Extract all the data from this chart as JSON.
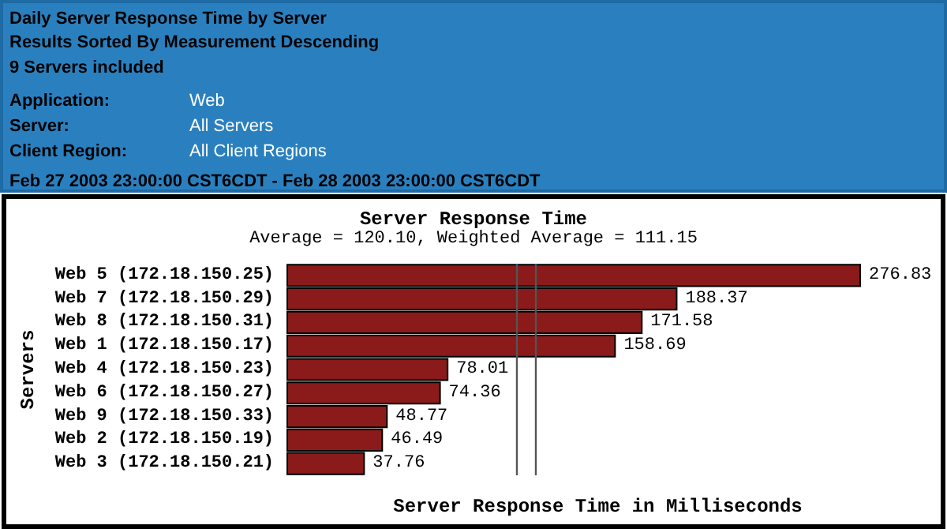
{
  "chart_data": {
    "type": "bar",
    "orientation": "horizontal",
    "title": "Server Response Time",
    "subtitle": "Average = 120.10, Weighted Average = 111.15",
    "xlabel": "Server Response Time in Milliseconds",
    "ylabel": "Servers",
    "annotations": [
      "Daily Server Response Time by Server",
      "Results Sorted By Measurement Descending",
      "9 Servers included",
      "Application:",
      "Web",
      "Server:",
      "All Servers",
      "Client Region:",
      "All Client Regions",
      "Feb 27 2003 23:00:00 CST6CDT  -  Feb 28 2003 23:00:00 CST6CDT"
    ],
    "categories": [
      "Web 5 (172.18.150.25)",
      "Web 7 (172.18.150.29)",
      "Web 8 (172.18.150.31)",
      "Web 1 (172.18.150.17)",
      "Web 4 (172.18.150.23)",
      "Web 6 (172.18.150.27)",
      "Web 9 (172.18.150.33)",
      "Web 2 (172.18.150.19)",
      "Web 3 (172.18.150.21)"
    ],
    "values": [
      276.83,
      188.37,
      171.58,
      158.69,
      78.01,
      74.36,
      48.77,
      46.49,
      37.76
    ],
    "color": "#8b1a1a",
    "data_labels": true,
    "tick_labels": "y",
    "ref_lines": [
      {
        "axis": "x",
        "value": 120.1,
        "color": "#555555"
      },
      {
        "axis": "x",
        "value": 111.15,
        "color": "#555555"
      }
    ]
  }
}
